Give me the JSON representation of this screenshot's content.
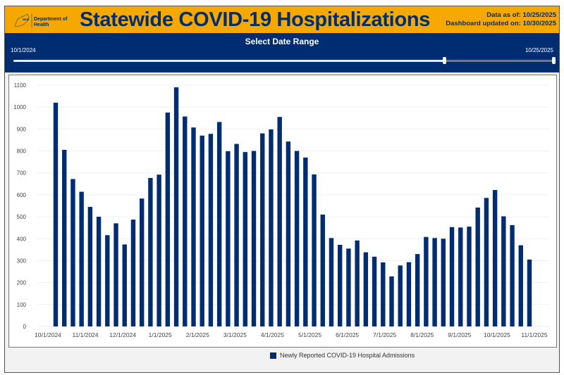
{
  "header": {
    "logo_text": "NEW YORK STATE Department of Health",
    "title": "Statewide COVID-19 Hospitalizations",
    "data_as_of": "Data as of: 10/25/2025",
    "updated": "Dashboard updated on: 10/30/2025"
  },
  "range": {
    "title": "Select Date Range",
    "start": "10/1/2024",
    "end": "10/25/2025",
    "selected_fraction": [
      0.8,
      1.0
    ]
  },
  "colors": {
    "header": "#f5a800",
    "band": "#002d72",
    "bar": "#002d72"
  },
  "chart_data": {
    "type": "bar",
    "title": "",
    "xlabel": "",
    "ylabel": "",
    "ylim": [
      0,
      1100
    ],
    "yticks": [
      0,
      100,
      200,
      300,
      400,
      500,
      600,
      700,
      800,
      900,
      1000,
      1100
    ],
    "xticks": [
      "10/1/2024",
      "11/1/2024",
      "12/1/2024",
      "1/1/2025",
      "2/1/2025",
      "3/1/2025",
      "4/1/2025",
      "5/1/2025",
      "6/1/2025",
      "7/1/2025",
      "8/1/2025",
      "9/1/2025",
      "10/1/2025",
      "11/1/2025"
    ],
    "grid": true,
    "legend_position": "bottom",
    "series": [
      {
        "name": "Newly Reported COVID-19 Hospital Admissions",
        "values": [
          1020,
          805,
          672,
          614,
          545,
          500,
          416,
          470,
          374,
          487,
          583,
          677,
          692,
          975,
          1090,
          957,
          907,
          870,
          878,
          932,
          799,
          832,
          795,
          800,
          880,
          898,
          955,
          843,
          800,
          770,
          693,
          510,
          403,
          372,
          355,
          392,
          338,
          318,
          292,
          228,
          278,
          293,
          330,
          408,
          403,
          400,
          453,
          451,
          455,
          542,
          586,
          622,
          502,
          462,
          370,
          305
        ]
      }
    ]
  }
}
